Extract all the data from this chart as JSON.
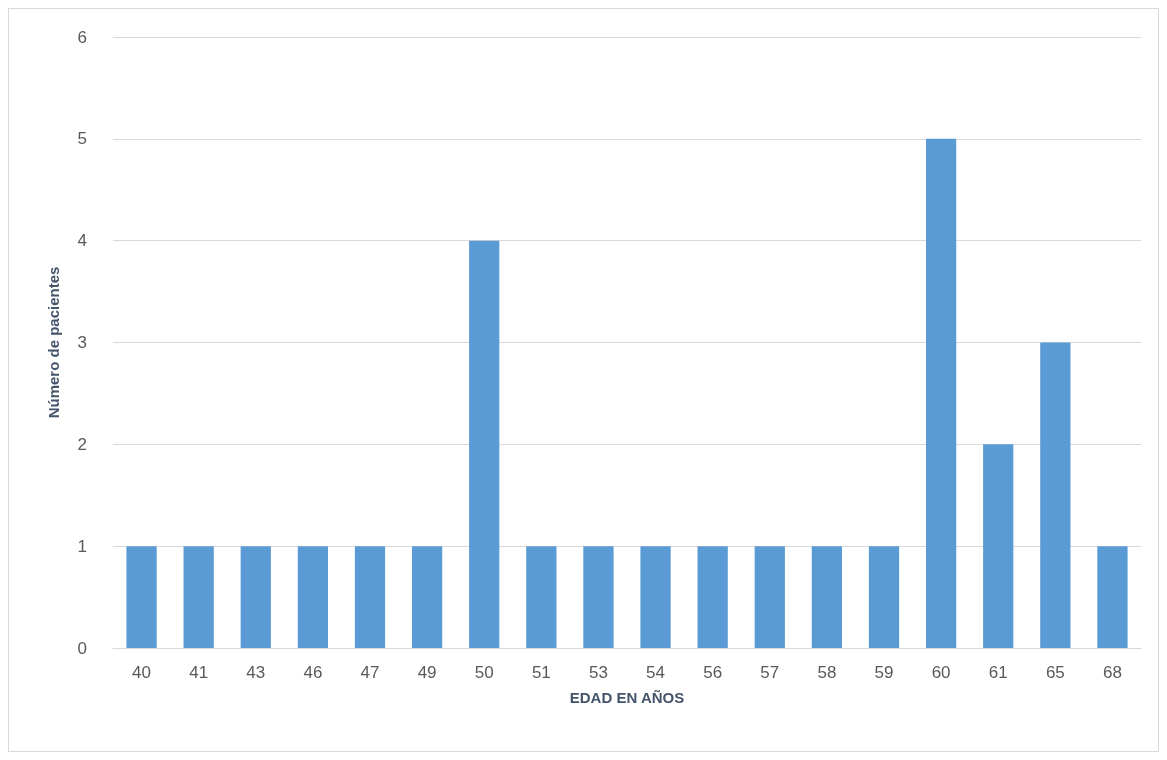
{
  "chart_data": {
    "type": "bar",
    "xlabel": "EDAD EN AÑOS",
    "ylabel": "Número de pacientes",
    "categories": [
      "40",
      "41",
      "43",
      "46",
      "47",
      "49",
      "50",
      "51",
      "53",
      "54",
      "56",
      "57",
      "58",
      "59",
      "60",
      "61",
      "65",
      "68"
    ],
    "values": [
      1,
      1,
      1,
      1,
      1,
      1,
      4,
      1,
      1,
      1,
      1,
      1,
      1,
      1,
      5,
      2,
      3,
      1
    ],
    "color": "#5b9bd5",
    "ylim": [
      0,
      6
    ],
    "yticks": [
      0,
      1,
      2,
      3,
      4,
      5,
      6
    ],
    "grid": "y"
  }
}
